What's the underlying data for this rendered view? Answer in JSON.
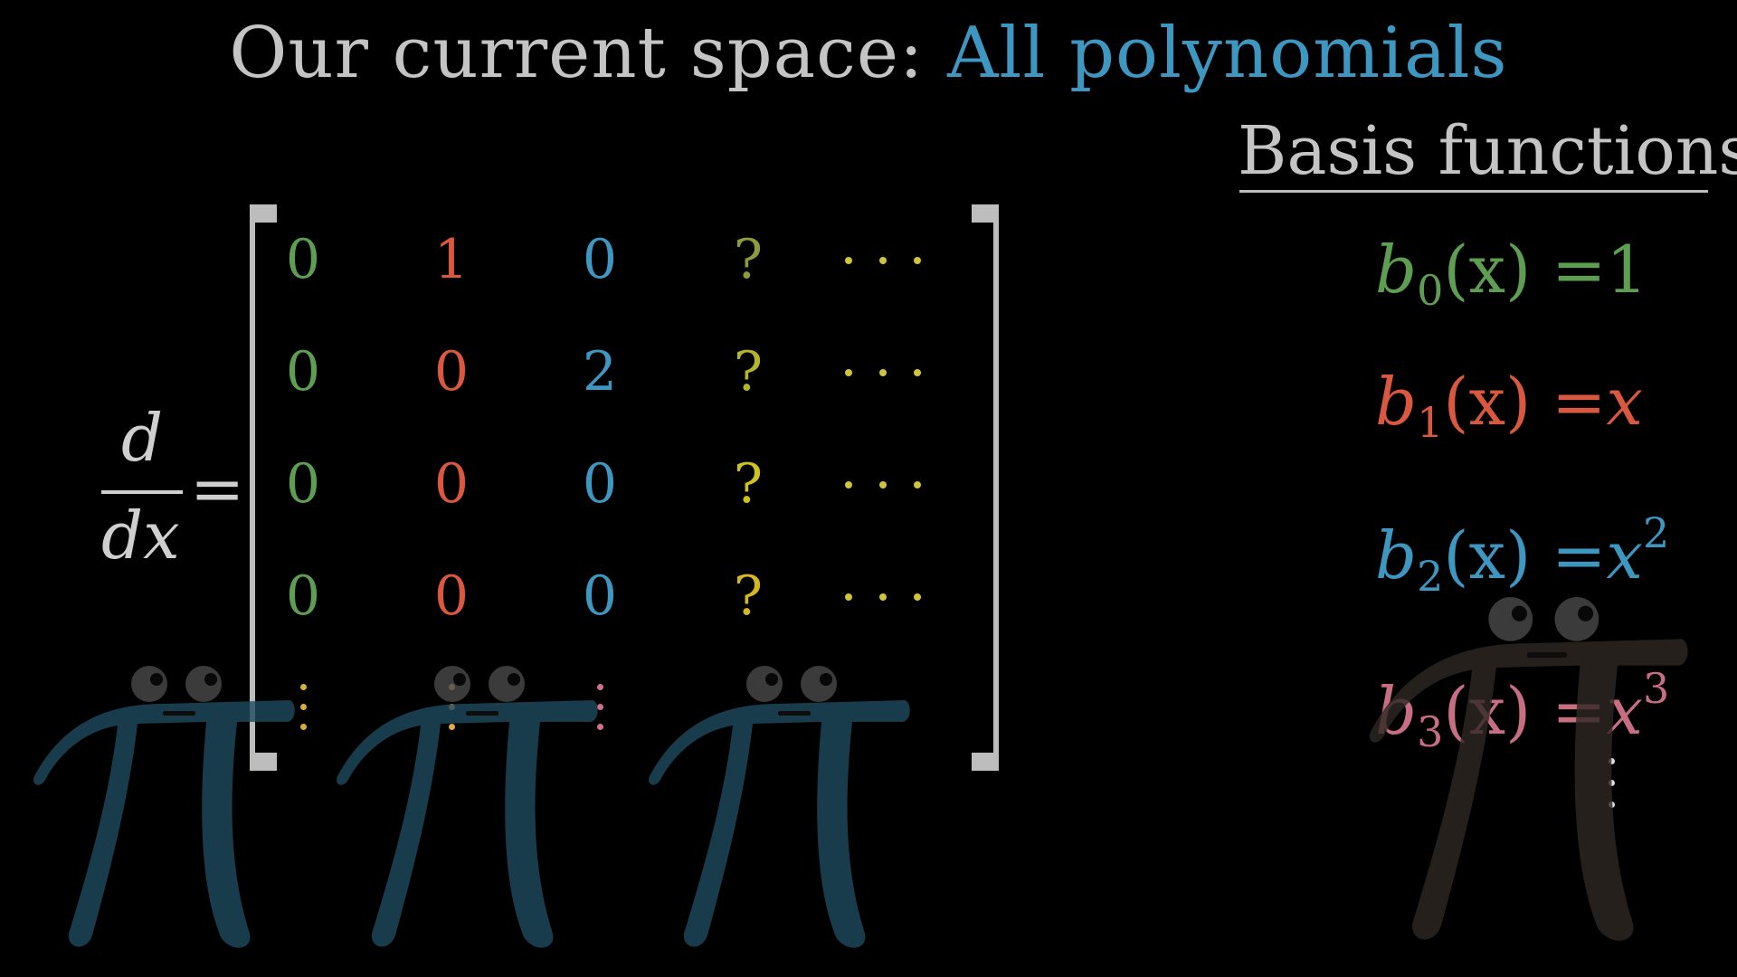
{
  "title": {
    "prefix": "Our current space:",
    "space_name": "All polynomials"
  },
  "basis_panel": {
    "heading": "Basis functions",
    "functions": [
      {
        "fn": "b",
        "index": "0",
        "arg": "(x)",
        "eq": "=",
        "rhs": "1",
        "rhs_exp": "",
        "color": "#5e9e52"
      },
      {
        "fn": "b",
        "index": "1",
        "arg": "(x)",
        "eq": "=",
        "rhs": "x",
        "rhs_exp": "",
        "color": "#d9583f"
      },
      {
        "fn": "b",
        "index": "2",
        "arg": "(x)",
        "eq": "=",
        "rhs": "x",
        "rhs_exp": "2",
        "color": "#3d97c0"
      },
      {
        "fn": "b",
        "index": "3",
        "arg": "(x)",
        "eq": "=",
        "rhs": "x",
        "rhs_exp": "3",
        "color": "#c76e82"
      }
    ]
  },
  "operator": {
    "numerator": "d",
    "denominator": "dx",
    "equals": "="
  },
  "matrix": {
    "column_colors": [
      "#5e9e52",
      "#d9583f",
      "#3d97c0",
      "#c6c123",
      "#cfc43a"
    ],
    "rows": [
      [
        "0",
        "1",
        "0",
        "?"
      ],
      [
        "0",
        "0",
        "2",
        "?"
      ],
      [
        "0",
        "0",
        "0",
        "?"
      ],
      [
        "0",
        "0",
        "0",
        "?"
      ]
    ],
    "question_colors": [
      "#8c9b3c",
      "#b3b52c",
      "#cdc21f",
      "#d4b822"
    ],
    "vdots_colors": [
      "#d4b13a",
      "#e3a84c",
      "#d0708a"
    ]
  },
  "pi_creatures": [
    {
      "color": "#1f4b5e"
    },
    {
      "color": "#1f4b5e"
    },
    {
      "color": "#1f4b5e"
    },
    {
      "color": "#2f2824"
    }
  ]
}
